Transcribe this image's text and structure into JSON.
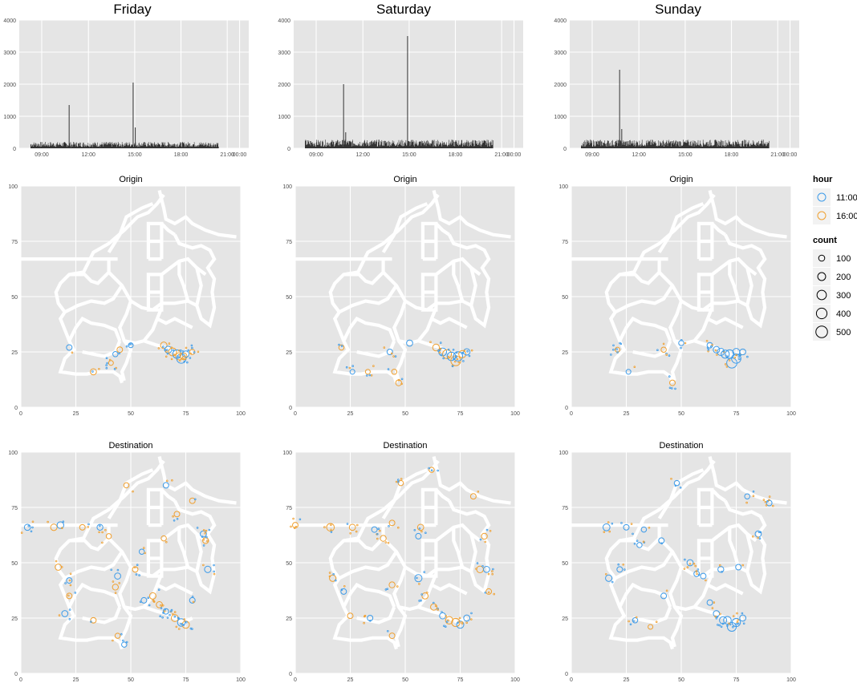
{
  "figure": {
    "columns": [
      "Friday",
      "Saturday",
      "Sunday"
    ],
    "row_titles": [
      "Origin",
      "Destination"
    ]
  },
  "colors": {
    "panel_bg": "#e5e5e5",
    "grid": "#ffffff",
    "bar": "#333333",
    "road": "#ffffff",
    "hour_11": "#3d9be9",
    "hour_16": "#f0a030",
    "axis_text": "#4d4d4d"
  },
  "legend": {
    "hour_title": "hour",
    "hour_items": [
      {
        "label": "11:00",
        "color": "#3d9be9"
      },
      {
        "label": "16:00",
        "color": "#f0a030"
      }
    ],
    "count_title": "count",
    "count_items": [
      {
        "label": "100",
        "value": 100
      },
      {
        "label": "200",
        "value": 200
      },
      {
        "label": "300",
        "value": 300
      },
      {
        "label": "400",
        "value": 400
      },
      {
        "label": "500",
        "value": 500
      }
    ]
  },
  "chart_data": [
    {
      "type": "bar",
      "day": "Friday",
      "x_ticks": [
        "09:00",
        "12:00",
        "15:00",
        "18:00",
        "21:00",
        "00:00"
      ],
      "ylim": [
        0,
        4000
      ],
      "y_ticks": [
        0,
        1000,
        2000,
        3000,
        4000
      ],
      "baseline": 150,
      "spikes": [
        {
          "time": "11:00",
          "value": 1350
        },
        {
          "time": "16:00",
          "value": 2050
        },
        {
          "time": "16:10",
          "value": 650
        }
      ]
    },
    {
      "type": "bar",
      "day": "Saturday",
      "x_ticks": [
        "09:00",
        "12:00",
        "15:00",
        "18:00",
        "21:00",
        "00:00"
      ],
      "ylim": [
        0,
        4000
      ],
      "y_ticks": [
        0,
        1000,
        2000,
        3000,
        4000
      ],
      "baseline": 200,
      "spikes": [
        {
          "time": "11:00",
          "value": 2000
        },
        {
          "time": "16:00",
          "value": 3500
        },
        {
          "time": "11:10",
          "value": 500
        }
      ]
    },
    {
      "type": "bar",
      "day": "Sunday",
      "x_ticks": [
        "09:00",
        "12:00",
        "15:00",
        "18:00",
        "21:00",
        "00:00"
      ],
      "ylim": [
        0,
        4000
      ],
      "y_ticks": [
        0,
        1000,
        2000,
        3000,
        4000
      ],
      "baseline": 200,
      "spikes": [
        {
          "time": "11:00",
          "value": 2450
        },
        {
          "time": "11:10",
          "value": 600
        }
      ]
    },
    {
      "type": "scatter",
      "day": "Friday",
      "panel": "Origin",
      "xlim": [
        0,
        100
      ],
      "ylim": [
        0,
        100
      ],
      "x_ticks": [
        0,
        25,
        50,
        75,
        100
      ],
      "y_ticks": [
        0,
        25,
        50,
        75,
        100
      ],
      "points": [
        {
          "x": 22,
          "y": 27,
          "hour": "11:00",
          "count": 60
        },
        {
          "x": 33,
          "y": 16,
          "hour": "16:00",
          "count": 80
        },
        {
          "x": 41,
          "y": 20,
          "hour": "16:00",
          "count": 40
        },
        {
          "x": 43,
          "y": 24,
          "hour": "11:00",
          "count": 50
        },
        {
          "x": 45,
          "y": 26,
          "hour": "16:00",
          "count": 60
        },
        {
          "x": 50,
          "y": 28,
          "hour": "11:00",
          "count": 40
        },
        {
          "x": 65,
          "y": 28,
          "hour": "16:00",
          "count": 90
        },
        {
          "x": 67,
          "y": 26,
          "hour": "11:00",
          "count": 110
        },
        {
          "x": 69,
          "y": 25,
          "hour": "16:00",
          "count": 150
        },
        {
          "x": 71,
          "y": 24,
          "hour": "11:00",
          "count": 180
        },
        {
          "x": 72,
          "y": 23,
          "hour": "16:00",
          "count": 120
        },
        {
          "x": 73,
          "y": 22,
          "hour": "11:00",
          "count": 230
        },
        {
          "x": 74,
          "y": 23,
          "hour": "16:00",
          "count": 100
        },
        {
          "x": 75,
          "y": 24,
          "hour": "11:00",
          "count": 90
        },
        {
          "x": 78,
          "y": 25,
          "hour": "16:00",
          "count": 50
        }
      ]
    },
    {
      "type": "scatter",
      "day": "Saturday",
      "panel": "Origin",
      "xlim": [
        0,
        100
      ],
      "ylim": [
        0,
        100
      ],
      "x_ticks": [
        0,
        25,
        50,
        75,
        100
      ],
      "y_ticks": [
        0,
        25,
        50,
        75,
        100
      ],
      "points": [
        {
          "x": 21,
          "y": 27,
          "hour": "16:00",
          "count": 50
        },
        {
          "x": 26,
          "y": 16,
          "hour": "11:00",
          "count": 40
        },
        {
          "x": 33,
          "y": 16,
          "hour": "16:00",
          "count": 40
        },
        {
          "x": 43,
          "y": 25,
          "hour": "11:00",
          "count": 60
        },
        {
          "x": 45,
          "y": 16,
          "hour": "16:00",
          "count": 50
        },
        {
          "x": 47,
          "y": 11,
          "hour": "16:00",
          "count": 70
        },
        {
          "x": 52,
          "y": 29,
          "hour": "11:00",
          "count": 80
        },
        {
          "x": 64,
          "y": 27,
          "hour": "16:00",
          "count": 100
        },
        {
          "x": 67,
          "y": 25,
          "hour": "11:00",
          "count": 150
        },
        {
          "x": 69,
          "y": 24,
          "hour": "16:00",
          "count": 200
        },
        {
          "x": 71,
          "y": 23,
          "hour": "11:00",
          "count": 180
        },
        {
          "x": 73,
          "y": 21,
          "hour": "16:00",
          "count": 260
        },
        {
          "x": 74,
          "y": 23,
          "hour": "11:00",
          "count": 220
        },
        {
          "x": 76,
          "y": 24,
          "hour": "16:00",
          "count": 120
        },
        {
          "x": 78,
          "y": 25,
          "hour": "11:00",
          "count": 90
        }
      ]
    },
    {
      "type": "scatter",
      "day": "Sunday",
      "panel": "Origin",
      "xlim": [
        0,
        100
      ],
      "ylim": [
        0,
        100
      ],
      "x_ticks": [
        0,
        25,
        50,
        75,
        100
      ],
      "y_ticks": [
        0,
        25,
        50,
        75,
        100
      ],
      "points": [
        {
          "x": 21,
          "y": 26,
          "hour": "16:00",
          "count": 40
        },
        {
          "x": 26,
          "y": 16,
          "hour": "11:00",
          "count": 40
        },
        {
          "x": 42,
          "y": 26,
          "hour": "16:00",
          "count": 50
        },
        {
          "x": 46,
          "y": 11,
          "hour": "16:00",
          "count": 60
        },
        {
          "x": 50,
          "y": 29,
          "hour": "11:00",
          "count": 50
        },
        {
          "x": 63,
          "y": 28,
          "hour": "11:00",
          "count": 60
        },
        {
          "x": 66,
          "y": 26,
          "hour": "11:00",
          "count": 90
        },
        {
          "x": 68,
          "y": 25,
          "hour": "11:00",
          "count": 120
        },
        {
          "x": 70,
          "y": 24,
          "hour": "11:00",
          "count": 160
        },
        {
          "x": 72,
          "y": 24,
          "hour": "11:00",
          "count": 190
        },
        {
          "x": 73,
          "y": 20,
          "hour": "11:00",
          "count": 280
        },
        {
          "x": 75,
          "y": 22,
          "hour": "11:00",
          "count": 230
        },
        {
          "x": 75,
          "y": 25,
          "hour": "11:00",
          "count": 110
        },
        {
          "x": 78,
          "y": 25,
          "hour": "11:00",
          "count": 70
        }
      ]
    },
    {
      "type": "scatter",
      "day": "Friday",
      "panel": "Destination",
      "xlim": [
        0,
        100
      ],
      "ylim": [
        0,
        100
      ],
      "x_ticks": [
        0,
        25,
        50,
        75,
        100
      ],
      "y_ticks": [
        0,
        25,
        50,
        75,
        100
      ],
      "points": [
        {
          "x": 3,
          "y": 66,
          "hour": "11:00",
          "count": 80
        },
        {
          "x": 15,
          "y": 66,
          "hour": "16:00",
          "count": 90
        },
        {
          "x": 18,
          "y": 67,
          "hour": "11:00",
          "count": 100
        },
        {
          "x": 28,
          "y": 66,
          "hour": "16:00",
          "count": 60
        },
        {
          "x": 36,
          "y": 66,
          "hour": "11:00",
          "count": 70
        },
        {
          "x": 40,
          "y": 62,
          "hour": "16:00",
          "count": 50
        },
        {
          "x": 17,
          "y": 48,
          "hour": "16:00",
          "count": 80
        },
        {
          "x": 22,
          "y": 42,
          "hour": "11:00",
          "count": 60
        },
        {
          "x": 20,
          "y": 27,
          "hour": "11:00",
          "count": 80
        },
        {
          "x": 22,
          "y": 35,
          "hour": "16:00",
          "count": 60
        },
        {
          "x": 43,
          "y": 39,
          "hour": "16:00",
          "count": 70
        },
        {
          "x": 44,
          "y": 44,
          "hour": "11:00",
          "count": 80
        },
        {
          "x": 52,
          "y": 47,
          "hour": "16:00",
          "count": 60
        },
        {
          "x": 56,
          "y": 33,
          "hour": "11:00",
          "count": 60
        },
        {
          "x": 60,
          "y": 35,
          "hour": "16:00",
          "count": 90
        },
        {
          "x": 63,
          "y": 31,
          "hour": "16:00",
          "count": 80
        },
        {
          "x": 66,
          "y": 28,
          "hour": "11:00",
          "count": 60
        },
        {
          "x": 70,
          "y": 25,
          "hour": "16:00",
          "count": 110
        },
        {
          "x": 73,
          "y": 23,
          "hour": "11:00",
          "count": 140
        },
        {
          "x": 75,
          "y": 22,
          "hour": "16:00",
          "count": 120
        },
        {
          "x": 78,
          "y": 33,
          "hour": "11:00",
          "count": 60
        },
        {
          "x": 85,
          "y": 47,
          "hour": "11:00",
          "count": 90
        },
        {
          "x": 84,
          "y": 60,
          "hour": "16:00",
          "count": 70
        },
        {
          "x": 83,
          "y": 63,
          "hour": "11:00",
          "count": 80
        },
        {
          "x": 78,
          "y": 78,
          "hour": "16:00",
          "count": 60
        },
        {
          "x": 71,
          "y": 72,
          "hour": "16:00",
          "count": 60
        },
        {
          "x": 66,
          "y": 85,
          "hour": "11:00",
          "count": 60
        },
        {
          "x": 48,
          "y": 85,
          "hour": "16:00",
          "count": 50
        },
        {
          "x": 65,
          "y": 61,
          "hour": "16:00",
          "count": 50
        },
        {
          "x": 55,
          "y": 55,
          "hour": "11:00",
          "count": 50
        },
        {
          "x": 33,
          "y": 24,
          "hour": "16:00",
          "count": 60
        },
        {
          "x": 44,
          "y": 17,
          "hour": "16:00",
          "count": 50
        },
        {
          "x": 47,
          "y": 13,
          "hour": "11:00",
          "count": 50
        }
      ]
    },
    {
      "type": "scatter",
      "day": "Saturday",
      "panel": "Destination",
      "xlim": [
        0,
        100
      ],
      "ylim": [
        0,
        100
      ],
      "x_ticks": [
        0,
        25,
        50,
        75,
        100
      ],
      "y_ticks": [
        0,
        25,
        50,
        75,
        100
      ],
      "points": [
        {
          "x": 0,
          "y": 67,
          "hour": "16:00",
          "count": 60
        },
        {
          "x": 16,
          "y": 66,
          "hour": "16:00",
          "count": 140
        },
        {
          "x": 26,
          "y": 66,
          "hour": "16:00",
          "count": 80
        },
        {
          "x": 36,
          "y": 65,
          "hour": "11:00",
          "count": 60
        },
        {
          "x": 40,
          "y": 61,
          "hour": "16:00",
          "count": 70
        },
        {
          "x": 17,
          "y": 43,
          "hour": "16:00",
          "count": 90
        },
        {
          "x": 22,
          "y": 37,
          "hour": "11:00",
          "count": 60
        },
        {
          "x": 25,
          "y": 26,
          "hour": "16:00",
          "count": 60
        },
        {
          "x": 34,
          "y": 25,
          "hour": "11:00",
          "count": 60
        },
        {
          "x": 44,
          "y": 40,
          "hour": "16:00",
          "count": 70
        },
        {
          "x": 56,
          "y": 43,
          "hour": "11:00",
          "count": 120
        },
        {
          "x": 59,
          "y": 35,
          "hour": "16:00",
          "count": 80
        },
        {
          "x": 63,
          "y": 30,
          "hour": "16:00",
          "count": 90
        },
        {
          "x": 67,
          "y": 26,
          "hour": "11:00",
          "count": 80
        },
        {
          "x": 70,
          "y": 24,
          "hour": "16:00",
          "count": 130
        },
        {
          "x": 73,
          "y": 23,
          "hour": "16:00",
          "count": 170
        },
        {
          "x": 75,
          "y": 22,
          "hour": "11:00",
          "count": 120
        },
        {
          "x": 78,
          "y": 25,
          "hour": "11:00",
          "count": 80
        },
        {
          "x": 84,
          "y": 47,
          "hour": "16:00",
          "count": 100
        },
        {
          "x": 87,
          "y": 47,
          "hour": "11:00",
          "count": 80
        },
        {
          "x": 86,
          "y": 62,
          "hour": "16:00",
          "count": 70
        },
        {
          "x": 81,
          "y": 80,
          "hour": "16:00",
          "count": 60
        },
        {
          "x": 57,
          "y": 66,
          "hour": "16:00",
          "count": 80
        },
        {
          "x": 56,
          "y": 62,
          "hour": "11:00",
          "count": 60
        },
        {
          "x": 44,
          "y": 68,
          "hour": "16:00",
          "count": 60
        },
        {
          "x": 48,
          "y": 86,
          "hour": "16:00",
          "count": 50
        },
        {
          "x": 62,
          "y": 92,
          "hour": "16:00",
          "count": 50
        },
        {
          "x": 88,
          "y": 37,
          "hour": "16:00",
          "count": 60
        },
        {
          "x": 44,
          "y": 17,
          "hour": "16:00",
          "count": 60
        }
      ]
    },
    {
      "type": "scatter",
      "day": "Sunday",
      "panel": "Destination",
      "xlim": [
        0,
        100
      ],
      "ylim": [
        0,
        100
      ],
      "x_ticks": [
        0,
        25,
        50,
        75,
        100
      ],
      "y_ticks": [
        0,
        25,
        50,
        75,
        100
      ],
      "points": [
        {
          "x": 16,
          "y": 66,
          "hour": "11:00",
          "count": 110
        },
        {
          "x": 25,
          "y": 66,
          "hour": "11:00",
          "count": 60
        },
        {
          "x": 33,
          "y": 65,
          "hour": "11:00",
          "count": 50
        },
        {
          "x": 17,
          "y": 43,
          "hour": "11:00",
          "count": 90
        },
        {
          "x": 22,
          "y": 47,
          "hour": "11:00",
          "count": 60
        },
        {
          "x": 31,
          "y": 58,
          "hour": "11:00",
          "count": 50
        },
        {
          "x": 41,
          "y": 60,
          "hour": "11:00",
          "count": 60
        },
        {
          "x": 54,
          "y": 50,
          "hour": "11:00",
          "count": 80
        },
        {
          "x": 57,
          "y": 45,
          "hour": "11:00",
          "count": 60
        },
        {
          "x": 60,
          "y": 44,
          "hour": "11:00",
          "count": 60
        },
        {
          "x": 68,
          "y": 47,
          "hour": "11:00",
          "count": 70
        },
        {
          "x": 76,
          "y": 48,
          "hour": "11:00",
          "count": 60
        },
        {
          "x": 85,
          "y": 63,
          "hour": "11:00",
          "count": 80
        },
        {
          "x": 90,
          "y": 77,
          "hour": "11:00",
          "count": 60
        },
        {
          "x": 80,
          "y": 80,
          "hour": "11:00",
          "count": 50
        },
        {
          "x": 48,
          "y": 86,
          "hour": "11:00",
          "count": 50
        },
        {
          "x": 42,
          "y": 35,
          "hour": "11:00",
          "count": 60
        },
        {
          "x": 63,
          "y": 32,
          "hour": "11:00",
          "count": 60
        },
        {
          "x": 66,
          "y": 27,
          "hour": "11:00",
          "count": 80
        },
        {
          "x": 69,
          "y": 24,
          "hour": "11:00",
          "count": 120
        },
        {
          "x": 71,
          "y": 24,
          "hour": "11:00",
          "count": 140
        },
        {
          "x": 73,
          "y": 21,
          "hour": "11:00",
          "count": 200
        },
        {
          "x": 75,
          "y": 23,
          "hour": "11:00",
          "count": 170
        },
        {
          "x": 78,
          "y": 25,
          "hour": "11:00",
          "count": 80
        },
        {
          "x": 29,
          "y": 24,
          "hour": "11:00",
          "count": 50
        },
        {
          "x": 36,
          "y": 21,
          "hour": "16:00",
          "count": 40
        }
      ]
    }
  ]
}
